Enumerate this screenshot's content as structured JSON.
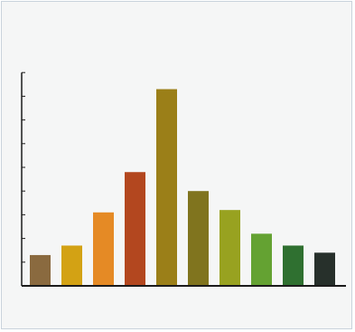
{
  "chart_data": {
    "type": "bar",
    "title": "",
    "xlabel": "",
    "ylabel": "",
    "ylim": [
      0,
      9
    ],
    "y_ticks": [
      0,
      1,
      2,
      3,
      4,
      5,
      6,
      7,
      8,
      9
    ],
    "tick_labels_visible": false,
    "grid": false,
    "legend": "none",
    "values": [
      1.3,
      1.7,
      3.1,
      4.8,
      8.3,
      4.0,
      3.2,
      2.2,
      1.7,
      1.4
    ],
    "colors": [
      "#8a6a3f",
      "#d3a214",
      "#e58a25",
      "#b3471f",
      "#9b7f18",
      "#80741e",
      "#98a220",
      "#64a232",
      "#2f7030",
      "#27302b"
    ]
  },
  "colors": {
    "background": "#f5f6f6",
    "frame_border": "#c9d3dc",
    "axis": "#1b1b1b"
  }
}
